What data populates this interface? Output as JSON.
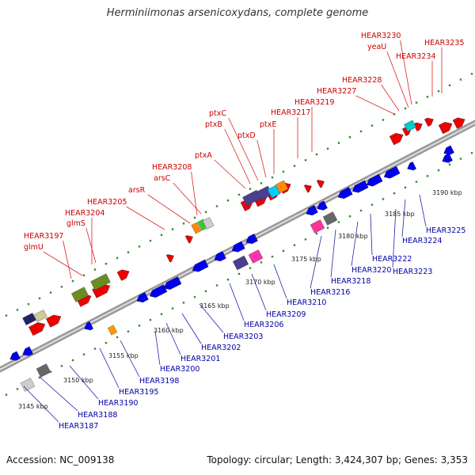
{
  "title": "Herminiimonas arsenicoxydans, complete genome",
  "accession": "Accession: NC_009138",
  "topology": "Topology: circular; Length: 3,424,307 bp; Genes: 3,353",
  "colors": {
    "forward_label": "#cc0000",
    "reverse_label": "#0000aa",
    "leader_forward": "#dd2222",
    "leader_reverse": "#2222aa",
    "backbone": "#999999",
    "tick": "#2e8b2e",
    "forward_gene": "#ee0000",
    "reverse_gene": "#0000ee"
  },
  "scale_labels": [
    "3145 kbp",
    "3150 kbp",
    "3155 kbp",
    "3160 kbp",
    "3165 kbp",
    "3170 kbp",
    "3175 kbp",
    "3180 kbp",
    "3185 kbp",
    "3190 kbp"
  ],
  "forward_genes": [
    "HEAR3197",
    "glmU",
    "HEAR3204",
    "glmS",
    "HEAR3205",
    "arsR",
    "HEAR3208",
    "arsC",
    "ptxA",
    "ptxB",
    "ptxC",
    "ptxD",
    "ptxE",
    "HEAR3217",
    "HEAR3219",
    "HEAR3227",
    "HEAR3228",
    "yeaU",
    "HEAR3230",
    "HEAR3234",
    "HEAR3235"
  ],
  "reverse_genes": [
    "HEAR3187",
    "HEAR3188",
    "HEAR3190",
    "HEAR3195",
    "HEAR3198",
    "HEAR3200",
    "HEAR3201",
    "HEAR3202",
    "HEAR3203",
    "HEAR3206",
    "HEAR3209",
    "HEAR3210",
    "HEAR3216",
    "HEAR3218",
    "HEAR3220",
    "HEAR3222",
    "HEAR3223",
    "HEAR3224",
    "HEAR3225"
  ]
}
